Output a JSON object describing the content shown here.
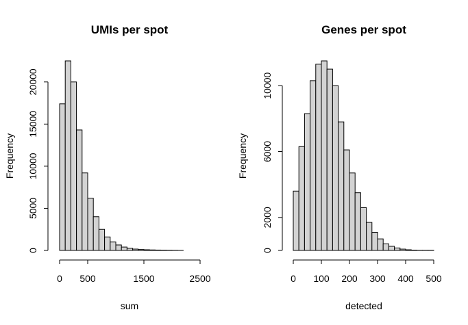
{
  "chart_data": [
    {
      "type": "bar",
      "title": "UMIs per spot",
      "xlabel": "sum",
      "ylabel": "Frequency",
      "bin_width": 100,
      "bin_start": 0,
      "values": [
        17400,
        22500,
        20000,
        14300,
        9200,
        6200,
        4000,
        2500,
        1600,
        1000,
        650,
        400,
        250,
        160,
        110,
        80,
        60,
        45,
        35,
        25,
        15,
        5,
        0,
        0,
        0
      ],
      "xlim": [
        0,
        2500
      ],
      "ylim": [
        0,
        22500
      ],
      "x_ticks": [
        0,
        500,
        1500,
        2500
      ],
      "x_tick_labels": [
        "0",
        "500",
        "1500",
        "2500"
      ],
      "y_ticks": [
        0,
        5000,
        10000,
        15000,
        20000
      ],
      "y_tick_labels": [
        "0",
        "5000",
        "10000",
        "15000",
        "20000"
      ],
      "bar_color": "#d3d3d3"
    },
    {
      "type": "bar",
      "title": "Genes per spot",
      "xlabel": "detected",
      "ylabel": "Frequency",
      "bin_width": 20,
      "bin_start": 0,
      "values": [
        3600,
        6300,
        8300,
        10300,
        11300,
        11500,
        11000,
        10000,
        7800,
        6100,
        4700,
        3500,
        2600,
        1700,
        1100,
        700,
        400,
        250,
        150,
        80,
        40,
        20,
        10,
        10,
        10
      ],
      "xlim": [
        0,
        500
      ],
      "ylim": [
        0,
        11500
      ],
      "x_ticks": [
        0,
        100,
        200,
        300,
        400,
        500
      ],
      "x_tick_labels": [
        "0",
        "100",
        "200",
        "300",
        "400",
        "500"
      ],
      "y_ticks": [
        0,
        2000,
        6000,
        10000
      ],
      "y_tick_labels": [
        "0",
        "2000",
        "6000",
        "10000"
      ],
      "bar_color": "#d3d3d3"
    }
  ]
}
